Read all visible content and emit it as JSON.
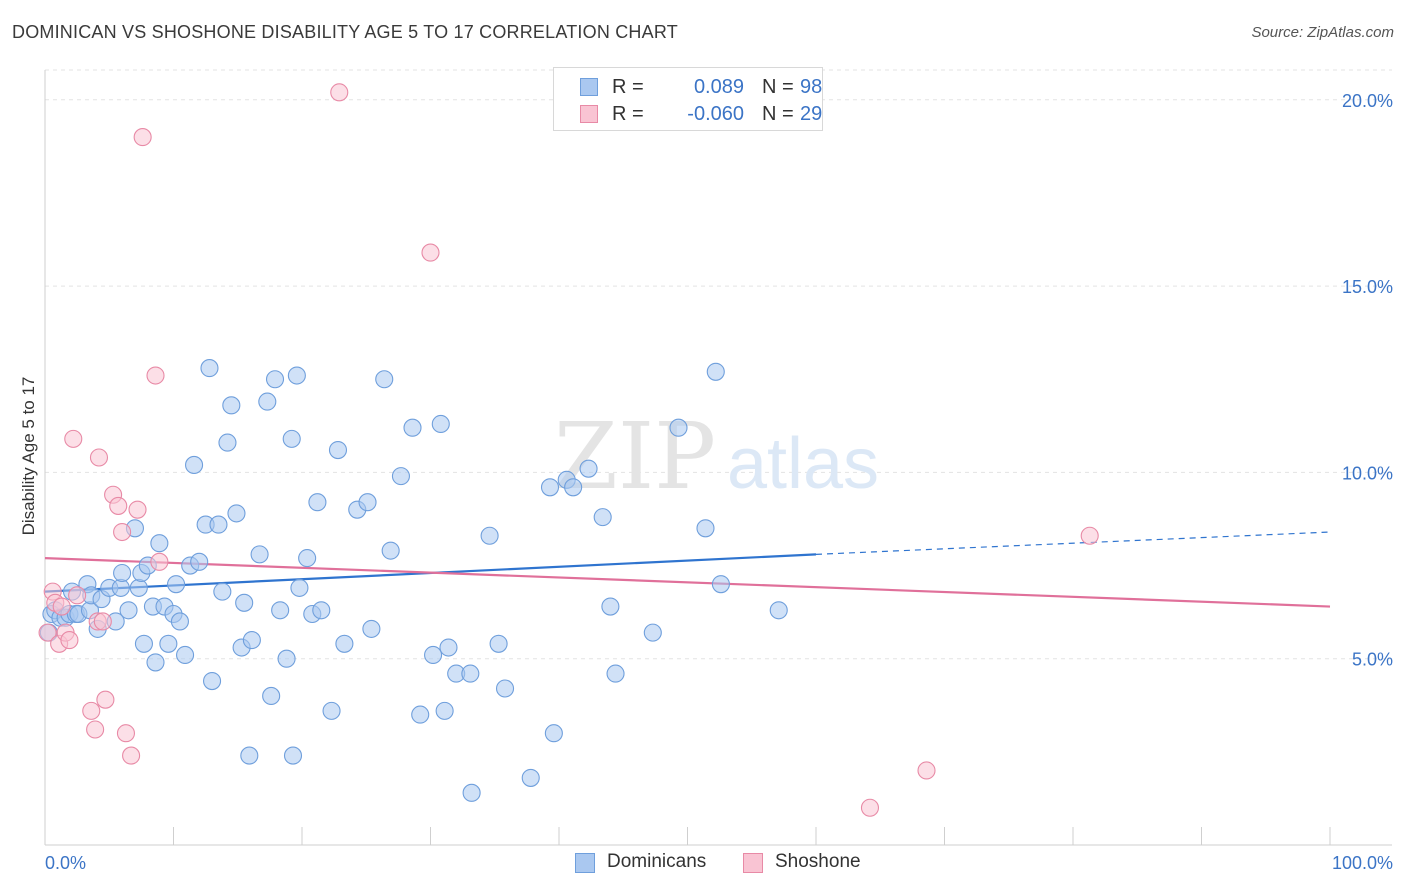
{
  "title": "DOMINICAN VS SHOSHONE DISABILITY AGE 5 TO 17 CORRELATION CHART",
  "source": "Source: ZipAtlas.com",
  "watermark": {
    "zip": "ZIP",
    "atlas": "atlas"
  },
  "legend_top": [
    {
      "r_label": "R =",
      "r_value": "0.089",
      "n_label": "N =",
      "n_value": "98",
      "color": "#aac8f0",
      "border": "#6f9fdc"
    },
    {
      "r_label": "R =",
      "r_value": "-0.060",
      "n_label": "N =",
      "n_value": "29",
      "color": "#f9c4d3",
      "border": "#e88aa6"
    }
  ],
  "legend_bottom": [
    {
      "label": "Dominicans",
      "color": "#aac8f0",
      "border": "#6f9fdc"
    },
    {
      "label": "Shoshone",
      "color": "#f9c4d3",
      "border": "#e88aa6"
    }
  ],
  "chart_data": {
    "type": "scatter",
    "title": "DOMINICAN VS SHOSHONE DISABILITY AGE 5 TO 17 CORRELATION CHART",
    "xlabel": "",
    "ylabel": "Disability Age 5 to 17",
    "xlim": [
      0,
      100
    ],
    "ylim": [
      0,
      20.8
    ],
    "x_tick_labels": [
      "0.0%",
      "100.0%"
    ],
    "y_ticks": [
      5,
      10,
      15,
      20
    ],
    "y_tick_labels": [
      "5.0%",
      "10.0%",
      "15.0%",
      "20.0%"
    ],
    "grid": true,
    "legend_position": "top-center",
    "series": [
      {
        "name": "Dominicans",
        "color": "#aac8f0",
        "edge": "#6f9fdc",
        "trend": {
          "x0": 0,
          "y0": 6.8,
          "x1": 60,
          "y1": 7.8,
          "dash_to_x": 100,
          "dash_to_y": 8.4,
          "color": "#2f74cf"
        },
        "points": [
          [
            0.3,
            5.7
          ],
          [
            0.5,
            6.2
          ],
          [
            0.8,
            6.3
          ],
          [
            1.2,
            6.1
          ],
          [
            1.6,
            6.1
          ],
          [
            1.9,
            6.2
          ],
          [
            2.1,
            6.8
          ],
          [
            2.4,
            6.2
          ],
          [
            2.6,
            6.2
          ],
          [
            3.3,
            7.0
          ],
          [
            3.5,
            6.3
          ],
          [
            3.6,
            6.7
          ],
          [
            4.1,
            5.8
          ],
          [
            4.4,
            6.6
          ],
          [
            5.0,
            6.9
          ],
          [
            5.5,
            6.0
          ],
          [
            5.9,
            6.9
          ],
          [
            6.0,
            7.3
          ],
          [
            6.5,
            6.3
          ],
          [
            7.0,
            8.5
          ],
          [
            7.3,
            6.9
          ],
          [
            7.5,
            7.3
          ],
          [
            7.7,
            5.4
          ],
          [
            8.0,
            7.5
          ],
          [
            8.4,
            6.4
          ],
          [
            8.6,
            4.9
          ],
          [
            8.9,
            8.1
          ],
          [
            9.3,
            6.4
          ],
          [
            9.6,
            5.4
          ],
          [
            10.0,
            6.2
          ],
          [
            10.2,
            7.0
          ],
          [
            10.5,
            6.0
          ],
          [
            10.9,
            5.1
          ],
          [
            11.3,
            7.5
          ],
          [
            11.6,
            10.2
          ],
          [
            12.0,
            7.6
          ],
          [
            12.5,
            8.6
          ],
          [
            12.8,
            12.8
          ],
          [
            13.0,
            4.4
          ],
          [
            13.5,
            8.6
          ],
          [
            13.8,
            6.8
          ],
          [
            14.2,
            10.8
          ],
          [
            14.5,
            11.8
          ],
          [
            14.9,
            8.9
          ],
          [
            15.3,
            5.3
          ],
          [
            15.5,
            6.5
          ],
          [
            15.9,
            2.4
          ],
          [
            16.1,
            5.5
          ],
          [
            16.7,
            7.8
          ],
          [
            17.3,
            11.9
          ],
          [
            17.6,
            4.0
          ],
          [
            17.9,
            12.5
          ],
          [
            18.3,
            6.3
          ],
          [
            18.8,
            5.0
          ],
          [
            19.2,
            10.9
          ],
          [
            19.3,
            2.4
          ],
          [
            19.6,
            12.6
          ],
          [
            19.8,
            6.9
          ],
          [
            20.4,
            7.7
          ],
          [
            20.8,
            6.2
          ],
          [
            21.2,
            9.2
          ],
          [
            21.5,
            6.3
          ],
          [
            22.3,
            3.6
          ],
          [
            22.8,
            10.6
          ],
          [
            23.3,
            5.4
          ],
          [
            24.3,
            9.0
          ],
          [
            25.1,
            9.2
          ],
          [
            25.4,
            5.8
          ],
          [
            26.4,
            12.5
          ],
          [
            26.9,
            7.9
          ],
          [
            27.7,
            9.9
          ],
          [
            28.6,
            11.2
          ],
          [
            29.2,
            3.5
          ],
          [
            30.2,
            5.1
          ],
          [
            30.8,
            11.3
          ],
          [
            31.1,
            3.6
          ],
          [
            31.4,
            5.3
          ],
          [
            32.0,
            4.6
          ],
          [
            33.1,
            4.6
          ],
          [
            33.2,
            1.4
          ],
          [
            34.6,
            8.3
          ],
          [
            35.3,
            5.4
          ],
          [
            35.8,
            4.2
          ],
          [
            37.8,
            1.8
          ],
          [
            39.3,
            9.6
          ],
          [
            39.6,
            3.0
          ],
          [
            40.6,
            9.8
          ],
          [
            41.1,
            9.6
          ],
          [
            42.3,
            10.1
          ],
          [
            43.4,
            8.8
          ],
          [
            44.0,
            6.4
          ],
          [
            44.4,
            4.6
          ],
          [
            47.3,
            5.7
          ],
          [
            49.3,
            11.2
          ],
          [
            51.4,
            8.5
          ],
          [
            52.2,
            12.7
          ],
          [
            52.6,
            7.0
          ],
          [
            57.1,
            6.3
          ]
        ]
      },
      {
        "name": "Shoshone",
        "color": "#f9c4d3",
        "edge": "#e88aa6",
        "trend": {
          "x0": 0,
          "y0": 7.7,
          "x1": 100,
          "y1": 6.4,
          "color": "#e0709a"
        },
        "points": [
          [
            0.2,
            5.7
          ],
          [
            0.6,
            6.8
          ],
          [
            0.8,
            6.5
          ],
          [
            1.1,
            5.4
          ],
          [
            1.3,
            6.4
          ],
          [
            1.6,
            5.7
          ],
          [
            1.9,
            5.5
          ],
          [
            2.2,
            10.9
          ],
          [
            2.5,
            6.7
          ],
          [
            3.6,
            3.6
          ],
          [
            3.9,
            3.1
          ],
          [
            4.1,
            6.0
          ],
          [
            4.2,
            10.4
          ],
          [
            4.5,
            6.0
          ],
          [
            4.7,
            3.9
          ],
          [
            5.3,
            9.4
          ],
          [
            5.7,
            9.1
          ],
          [
            6.0,
            8.4
          ],
          [
            6.3,
            3.0
          ],
          [
            6.7,
            2.4
          ],
          [
            7.2,
            9.0
          ],
          [
            7.6,
            19.0
          ],
          [
            8.6,
            12.6
          ],
          [
            8.9,
            7.6
          ],
          [
            22.9,
            20.2
          ],
          [
            30.0,
            15.9
          ],
          [
            64.2,
            1.0
          ],
          [
            68.6,
            2.0
          ],
          [
            81.3,
            8.3
          ]
        ]
      }
    ]
  }
}
